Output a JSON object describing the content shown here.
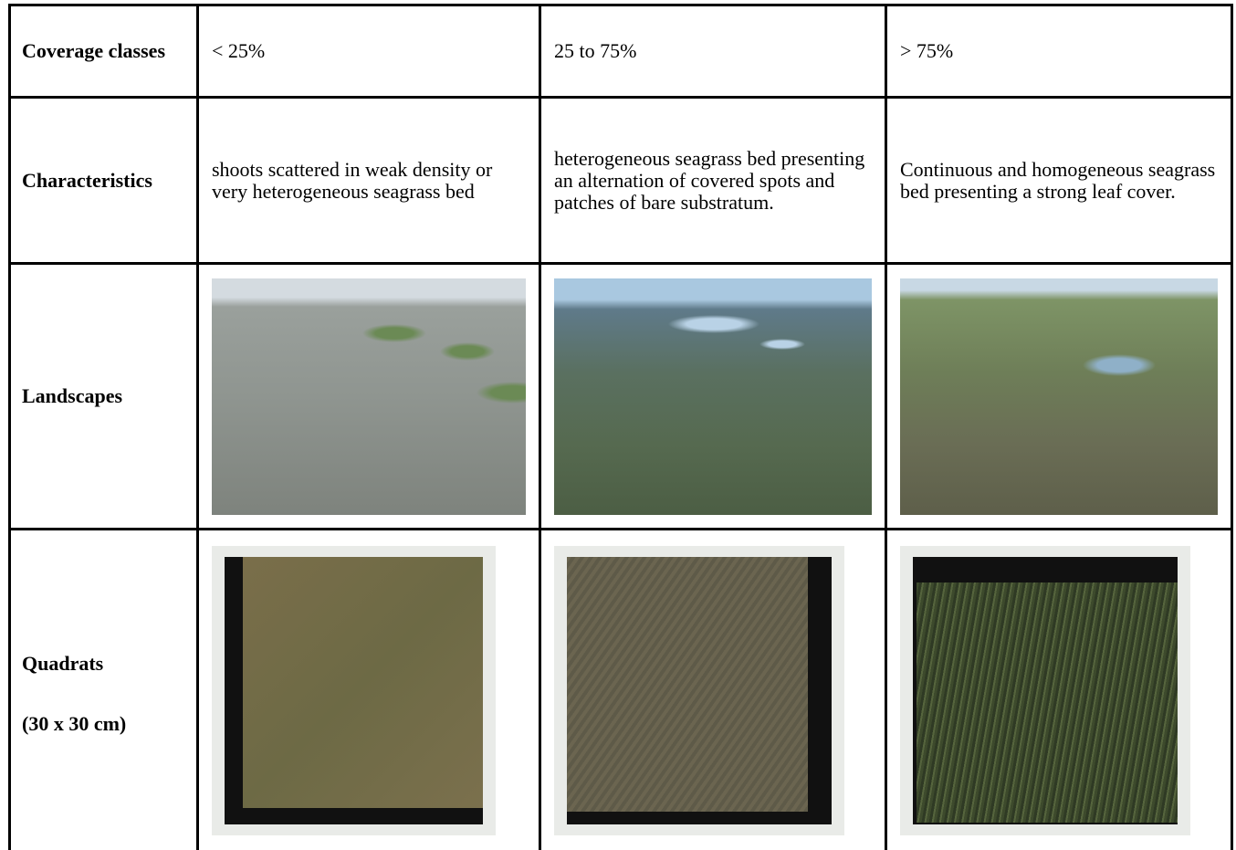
{
  "table": {
    "header": [
      "Coverage classes",
      "< 25%",
      "25 to 75%",
      "> 75%"
    ],
    "characteristics": {
      "label": "Characteristics",
      "cells": [
        "shoots scattered in weak density or very heterogeneous seagrass bed",
        "heterogeneous seagrass bed presenting an alternation of covered spots and patches of bare substratum.",
        "Continuous and homogeneous seagrass bed presenting a strong leaf cover."
      ]
    },
    "landscapes": {
      "label": "Landscapes"
    },
    "quadrats": {
      "label": "Quadrats",
      "sublabel": "(30 x 30 cm)"
    }
  }
}
